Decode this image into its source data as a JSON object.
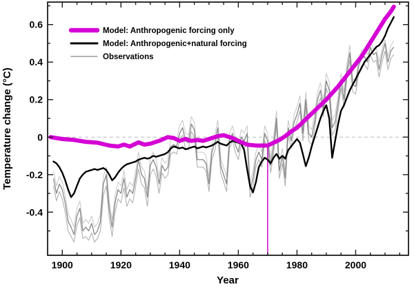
{
  "figure": {
    "background": "#ffffff",
    "y_axis_label": "Temperature change (°C)",
    "x_axis_label": "Year"
  },
  "legend": {
    "entries": [
      {
        "label": "Model: Anthropogenic forcing only",
        "color": "#d400d4",
        "swatch_width": 6.5
      },
      {
        "label": "Model: Anthropogenic+natural forcing",
        "color": "#000000",
        "swatch_width": 3
      },
      {
        "label": "Observations",
        "color": "#9a9a9a",
        "swatch_width": 1.6
      }
    ]
  },
  "chart_data": {
    "type": "line",
    "title": "",
    "xlabel": "Year",
    "ylabel": "Temperature change (°C)",
    "xlim": [
      1895,
      2018
    ],
    "ylim": [
      -0.63,
      0.72
    ],
    "grid": false,
    "legend_position": "top-left-inside",
    "x_ticks": {
      "major_values": [
        1900,
        1920,
        1940,
        1960,
        1980,
        2000
      ],
      "major_labels": [
        "1900",
        "1920",
        "1940",
        "1960",
        "1980",
        "2000"
      ],
      "minor_step": 5,
      "minor_start": 1895,
      "minor_end": 2015
    },
    "y_ticks": {
      "major_values": [
        0.6,
        0.4,
        0.2,
        0,
        -0.2,
        -0.4
      ],
      "major_labels": [
        "0.6",
        "0.4",
        "0.2",
        "0",
        "-0.2",
        "-0.4"
      ],
      "minor_step": 0.1,
      "minor_start": -0.6,
      "minor_end": 0.7
    },
    "zero_line": {
      "value": 0,
      "style": "dashed",
      "color": "#b8b8b8"
    },
    "annotation_line": {
      "x": 1970,
      "color": "#cc00cc",
      "from_y": -0.63,
      "to_y": -0.045
    },
    "series": [
      {
        "name": "model-anthropogenic-only",
        "label": "Model: Anthropogenic forcing only",
        "color": "#d400d4",
        "width": 6,
        "years": [
          1896,
          1900,
          1904,
          1908,
          1912,
          1916,
          1919,
          1921,
          1923,
          1926,
          1928,
          1930,
          1933,
          1936,
          1938,
          1940,
          1942,
          1944,
          1946,
          1948,
          1950,
          1953,
          1955,
          1958,
          1960,
          1963,
          1966,
          1970,
          1972,
          1974,
          1976,
          1978,
          1980,
          1982,
          1984,
          1986,
          1988,
          1990,
          1992,
          1994,
          1996,
          1998,
          2000,
          2002,
          2004,
          2006,
          2008,
          2010,
          2012,
          2013
        ],
        "values": [
          0.0,
          -0.01,
          -0.015,
          -0.025,
          -0.03,
          -0.045,
          -0.05,
          -0.04,
          -0.05,
          -0.028,
          -0.04,
          -0.035,
          -0.02,
          0.0,
          -0.005,
          -0.02,
          -0.01,
          -0.02,
          -0.015,
          -0.02,
          -0.01,
          0.005,
          0.01,
          -0.005,
          -0.02,
          -0.04,
          -0.045,
          -0.045,
          -0.03,
          -0.015,
          0.005,
          0.03,
          0.05,
          0.08,
          0.11,
          0.14,
          0.17,
          0.2,
          0.235,
          0.27,
          0.31,
          0.35,
          0.39,
          0.43,
          0.48,
          0.53,
          0.58,
          0.63,
          0.67,
          0.695
        ]
      },
      {
        "name": "model-anthropogenic-natural",
        "label": "Model: Anthropogenic+natural forcing",
        "color": "#000000",
        "width": 2.4,
        "x_start": 1897,
        "x_step": 1,
        "values": [
          -0.13,
          -0.14,
          -0.16,
          -0.19,
          -0.23,
          -0.28,
          -0.32,
          -0.3,
          -0.26,
          -0.22,
          -0.2,
          -0.185,
          -0.18,
          -0.175,
          -0.17,
          -0.175,
          -0.17,
          -0.165,
          -0.175,
          -0.2,
          -0.23,
          -0.215,
          -0.19,
          -0.17,
          -0.155,
          -0.145,
          -0.14,
          -0.135,
          -0.13,
          -0.12,
          -0.115,
          -0.11,
          -0.115,
          -0.11,
          -0.1,
          -0.105,
          -0.1,
          -0.095,
          -0.09,
          -0.08,
          -0.06,
          -0.05,
          -0.055,
          -0.06,
          -0.055,
          -0.065,
          -0.06,
          -0.055,
          -0.05,
          -0.06,
          -0.055,
          -0.05,
          -0.055,
          -0.05,
          -0.045,
          -0.035,
          -0.025,
          -0.035,
          -0.04,
          -0.045,
          -0.03,
          -0.02,
          -0.025,
          -0.03,
          -0.035,
          -0.07,
          -0.17,
          -0.26,
          -0.295,
          -0.24,
          -0.16,
          -0.13,
          -0.11,
          -0.12,
          -0.14,
          -0.11,
          -0.09,
          -0.115,
          -0.1,
          -0.115,
          -0.07,
          -0.05,
          -0.03,
          -0.01,
          -0.03,
          -0.09,
          -0.155,
          -0.11,
          -0.05,
          0.0,
          0.05,
          0.1,
          0.14,
          0.17,
          0.1,
          -0.11,
          -0.02,
          0.07,
          0.14,
          0.17,
          0.21,
          0.25,
          0.28,
          0.31,
          0.34,
          0.37,
          0.4,
          0.42,
          0.44,
          0.46,
          0.48,
          0.49,
          0.51,
          0.54,
          0.58,
          0.61,
          0.64
        ]
      },
      {
        "name": "observations-1",
        "label": "Observations",
        "color": "#878787",
        "width": 1.3,
        "x_start": 1897,
        "x_step": 1,
        "values": [
          -0.22,
          -0.3,
          -0.25,
          -0.28,
          -0.35,
          -0.45,
          -0.48,
          -0.52,
          -0.42,
          -0.38,
          -0.5,
          -0.48,
          -0.5,
          -0.46,
          -0.52,
          -0.5,
          -0.45,
          -0.25,
          -0.2,
          -0.38,
          -0.48,
          -0.35,
          -0.28,
          -0.3,
          -0.22,
          -0.32,
          -0.28,
          -0.3,
          -0.22,
          -0.12,
          -0.2,
          -0.22,
          -0.32,
          -0.15,
          -0.12,
          -0.16,
          -0.25,
          -0.15,
          -0.18,
          -0.16,
          -0.05,
          -0.04,
          -0.05,
          0.02,
          0.05,
          -0.02,
          -0.03,
          0.07,
          0.04,
          -0.12,
          -0.12,
          -0.12,
          -0.14,
          -0.25,
          -0.08,
          -0.03,
          0.05,
          -0.15,
          -0.2,
          -0.25,
          -0.02,
          0.02,
          -0.04,
          -0.08,
          0.0,
          -0.02,
          0.02,
          -0.28,
          -0.22,
          -0.12,
          -0.08,
          -0.12,
          0.02,
          -0.02,
          -0.15,
          -0.05,
          0.1,
          -0.18,
          -0.1,
          -0.22,
          0.05,
          -0.02,
          0.08,
          0.12,
          0.18,
          0.02,
          0.2,
          0.02,
          0.0,
          0.08,
          0.2,
          0.25,
          0.15,
          0.3,
          0.25,
          0.05,
          0.08,
          0.18,
          0.3,
          0.2,
          0.35,
          0.45,
          0.28,
          0.27,
          0.38,
          0.42,
          0.43,
          0.4,
          0.48,
          0.44,
          0.45,
          0.36,
          0.44,
          0.5,
          0.4,
          0.46,
          0.48
        ]
      },
      {
        "name": "observations-2",
        "label": "Observations",
        "color": "#b0b0b0",
        "width": 1.1,
        "x_start": 1897,
        "x_step": 1,
        "values": [
          -0.26,
          -0.34,
          -0.29,
          -0.33,
          -0.4,
          -0.5,
          -0.53,
          -0.56,
          -0.47,
          -0.43,
          -0.54,
          -0.53,
          -0.55,
          -0.51,
          -0.56,
          -0.54,
          -0.5,
          -0.31,
          -0.26,
          -0.43,
          -0.53,
          -0.4,
          -0.33,
          -0.35,
          -0.27,
          -0.37,
          -0.33,
          -0.35,
          -0.26,
          -0.17,
          -0.25,
          -0.27,
          -0.37,
          -0.2,
          -0.17,
          -0.21,
          -0.3,
          -0.19,
          -0.22,
          -0.2,
          -0.09,
          -0.08,
          -0.09,
          -0.02,
          0.01,
          -0.06,
          -0.07,
          0.03,
          0.0,
          -0.16,
          -0.16,
          -0.16,
          -0.18,
          -0.29,
          -0.12,
          -0.07,
          0.01,
          -0.19,
          -0.24,
          -0.29,
          -0.06,
          -0.02,
          -0.08,
          -0.12,
          -0.04,
          -0.06,
          -0.02,
          -0.32,
          -0.26,
          -0.16,
          -0.12,
          -0.16,
          -0.02,
          -0.06,
          -0.19,
          -0.09,
          0.06,
          -0.22,
          -0.14,
          -0.26,
          0.01,
          -0.06,
          0.04,
          0.08,
          0.14,
          -0.02,
          0.16,
          -0.02,
          -0.04,
          0.04,
          0.16,
          0.21,
          0.11,
          0.26,
          0.21,
          0.01,
          0.04,
          0.14,
          0.26,
          0.16,
          0.31,
          0.41,
          0.24,
          0.23,
          0.34,
          0.38,
          0.39,
          0.36,
          0.44,
          0.4,
          0.41,
          0.32,
          0.4,
          0.46,
          0.36,
          0.42,
          0.44
        ]
      },
      {
        "name": "observations-3",
        "label": "Observations",
        "color": "#c6c6c6",
        "width": 1.0,
        "x_start": 1897,
        "x_step": 1,
        "values": [
          -0.18,
          -0.26,
          -0.21,
          -0.24,
          -0.31,
          -0.41,
          -0.44,
          -0.48,
          -0.38,
          -0.34,
          -0.46,
          -0.44,
          -0.46,
          -0.42,
          -0.48,
          -0.46,
          -0.41,
          -0.21,
          -0.16,
          -0.34,
          -0.44,
          -0.31,
          -0.24,
          -0.26,
          -0.18,
          -0.28,
          -0.24,
          -0.26,
          -0.18,
          -0.08,
          -0.16,
          -0.18,
          -0.28,
          -0.11,
          -0.08,
          -0.12,
          -0.21,
          -0.11,
          -0.14,
          -0.12,
          -0.01,
          0.0,
          -0.01,
          0.06,
          0.09,
          0.02,
          0.01,
          0.11,
          0.08,
          -0.08,
          -0.08,
          -0.08,
          -0.1,
          -0.21,
          -0.04,
          0.01,
          0.09,
          -0.11,
          -0.16,
          -0.21,
          0.02,
          0.06,
          0.0,
          -0.04,
          0.04,
          0.02,
          0.06,
          -0.24,
          -0.18,
          -0.08,
          -0.04,
          -0.08,
          0.06,
          0.02,
          -0.11,
          -0.01,
          0.14,
          -0.14,
          -0.06,
          -0.18,
          0.09,
          0.02,
          0.12,
          0.16,
          0.22,
          0.06,
          0.24,
          0.06,
          0.04,
          0.12,
          0.24,
          0.29,
          0.19,
          0.34,
          0.29,
          0.09,
          0.12,
          0.22,
          0.34,
          0.24,
          0.39,
          0.49,
          0.31,
          0.3,
          0.42,
          0.46,
          0.47,
          0.44,
          0.51,
          0.47,
          0.48,
          0.4,
          0.47,
          0.52,
          0.43,
          0.49,
          0.51
        ]
      }
    ]
  }
}
